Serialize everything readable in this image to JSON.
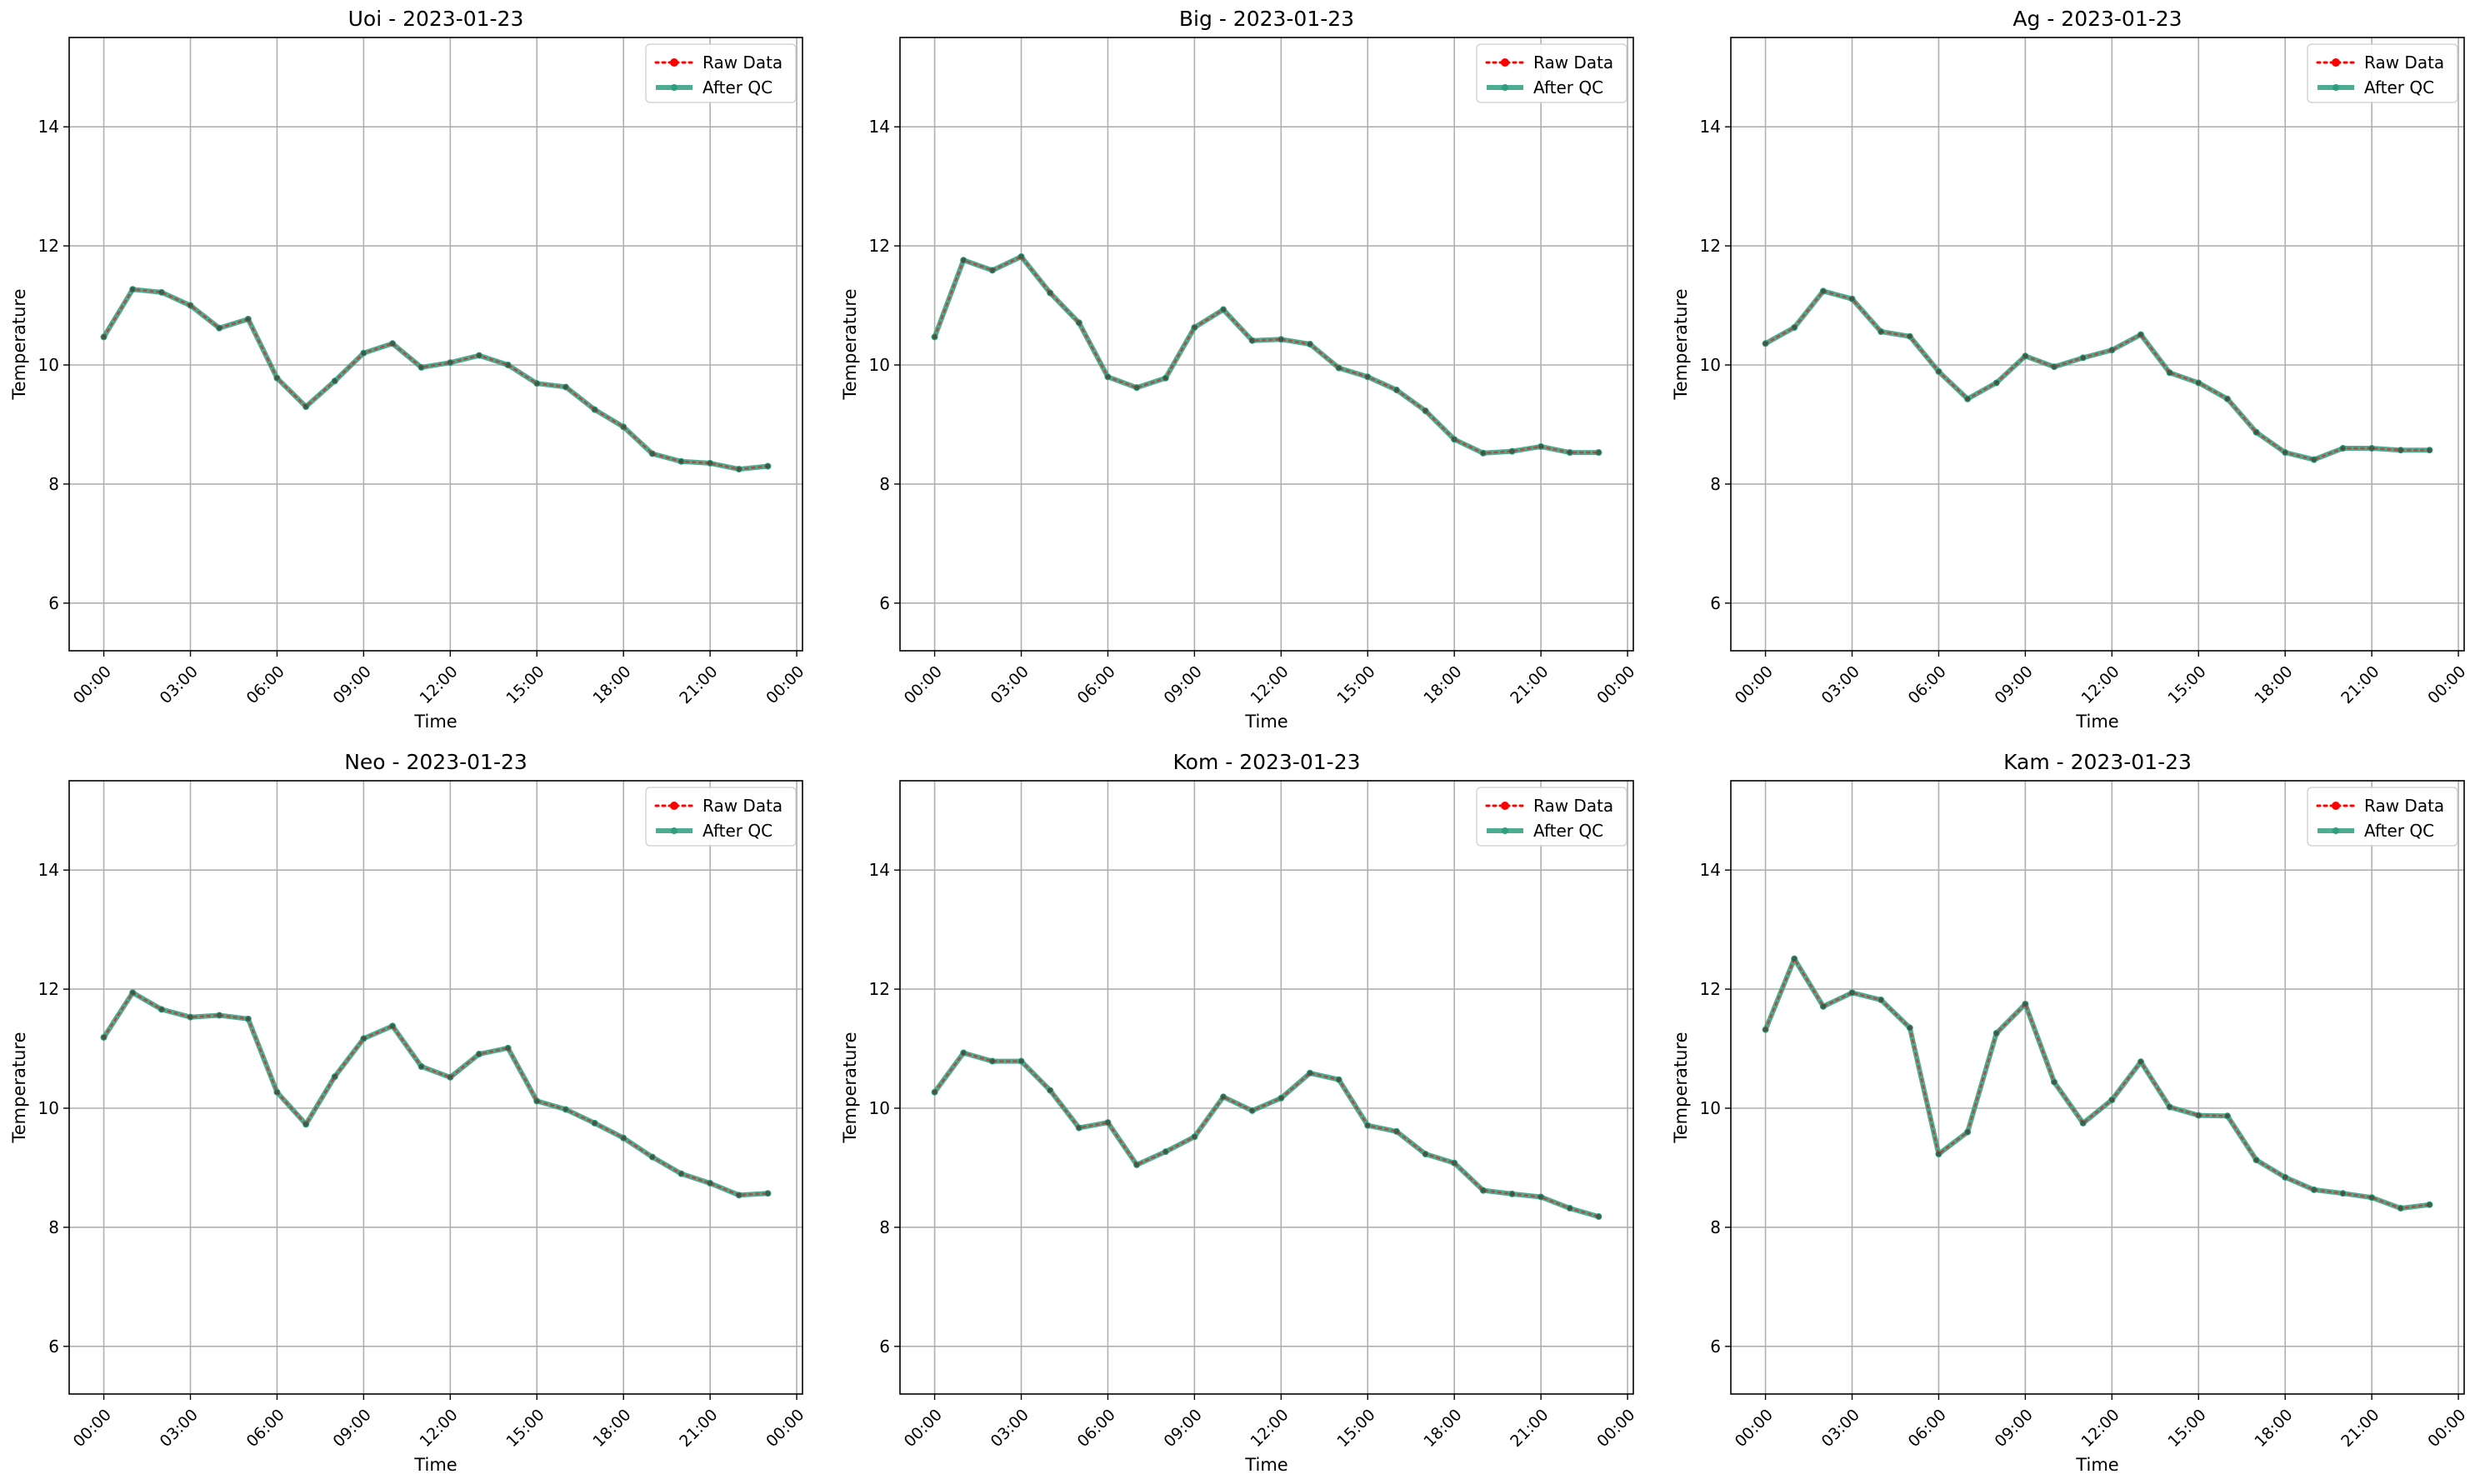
{
  "chart_data": [
    {
      "type": "line",
      "title": "Uoi - 2023-01-23",
      "xlabel": "Time",
      "ylabel": "Temperature",
      "x_ticks": [
        "00:00",
        "03:00",
        "06:00",
        "09:00",
        "12:00",
        "15:00",
        "18:00",
        "21:00",
        "00:00"
      ],
      "y_ticks": [
        "6",
        "8",
        "10",
        "12",
        "14"
      ],
      "ylim": [
        5.2,
        15.5
      ],
      "xlim_hours": [
        -1.2,
        24.2
      ],
      "grid": true,
      "legend_position": "top-right",
      "x_hours": [
        0,
        1,
        2,
        3,
        4,
        5,
        6,
        7,
        8,
        9,
        10,
        11,
        12,
        13,
        14,
        15,
        16,
        17,
        18,
        19,
        20,
        21,
        22,
        23
      ],
      "series": [
        {
          "name": "Raw Data",
          "color": "#ff0000",
          "style": "dotted",
          "values": [
            10.47,
            11.27,
            11.22,
            11.0,
            10.62,
            10.77,
            9.78,
            9.3,
            9.73,
            10.2,
            10.36,
            9.96,
            10.04,
            10.16,
            10.0,
            9.69,
            9.63,
            9.25,
            8.96,
            8.51,
            8.38,
            8.35,
            8.25,
            8.3
          ]
        },
        {
          "name": "After QC",
          "color": "#2e9e7e",
          "style": "solid",
          "values": [
            10.47,
            11.27,
            11.22,
            11.0,
            10.62,
            10.77,
            9.78,
            9.3,
            9.73,
            10.2,
            10.36,
            9.96,
            10.04,
            10.16,
            10.0,
            9.69,
            9.63,
            9.25,
            8.96,
            8.51,
            8.38,
            8.35,
            8.25,
            8.3
          ]
        }
      ]
    },
    {
      "type": "line",
      "title": "Big - 2023-01-23",
      "xlabel": "Time",
      "ylabel": "Temperature",
      "x_ticks": [
        "00:00",
        "03:00",
        "06:00",
        "09:00",
        "12:00",
        "15:00",
        "18:00",
        "21:00",
        "00:00"
      ],
      "y_ticks": [
        "6",
        "8",
        "10",
        "12",
        "14"
      ],
      "ylim": [
        5.2,
        15.5
      ],
      "xlim_hours": [
        -1.2,
        24.2
      ],
      "grid": true,
      "legend_position": "top-right",
      "x_hours": [
        0,
        1,
        2,
        3,
        4,
        5,
        6,
        7,
        8,
        9,
        10,
        11,
        12,
        13,
        14,
        15,
        16,
        17,
        18,
        19,
        20,
        21,
        22,
        23
      ],
      "series": [
        {
          "name": "Raw Data",
          "color": "#ff0000",
          "style": "dotted",
          "values": [
            10.47,
            11.76,
            11.59,
            11.82,
            11.21,
            10.71,
            9.8,
            9.62,
            9.78,
            10.63,
            10.93,
            10.41,
            10.43,
            10.35,
            9.95,
            9.8,
            9.58,
            9.23,
            8.75,
            8.52,
            8.55,
            8.63,
            8.53,
            8.53
          ]
        },
        {
          "name": "After QC",
          "color": "#2e9e7e",
          "style": "solid",
          "values": [
            10.47,
            11.76,
            11.59,
            11.82,
            11.21,
            10.71,
            9.8,
            9.62,
            9.78,
            10.63,
            10.93,
            10.41,
            10.43,
            10.35,
            9.95,
            9.8,
            9.58,
            9.23,
            8.75,
            8.52,
            8.55,
            8.63,
            8.53,
            8.53
          ]
        }
      ]
    },
    {
      "type": "line",
      "title": "Ag - 2023-01-23",
      "xlabel": "Time",
      "ylabel": "Temperature",
      "x_ticks": [
        "00:00",
        "03:00",
        "06:00",
        "09:00",
        "12:00",
        "15:00",
        "18:00",
        "21:00",
        "00:00"
      ],
      "y_ticks": [
        "6",
        "8",
        "10",
        "12",
        "14"
      ],
      "ylim": [
        5.2,
        15.5
      ],
      "xlim_hours": [
        -1.2,
        24.2
      ],
      "grid": true,
      "legend_position": "top-right",
      "x_hours": [
        0,
        1,
        2,
        3,
        4,
        5,
        6,
        7,
        8,
        9,
        10,
        11,
        12,
        13,
        14,
        15,
        16,
        17,
        18,
        19,
        20,
        21,
        22,
        23
      ],
      "series": [
        {
          "name": "Raw Data",
          "color": "#ff0000",
          "style": "dotted",
          "values": [
            10.36,
            10.63,
            11.24,
            11.11,
            10.56,
            10.48,
            9.89,
            9.43,
            9.7,
            10.15,
            9.97,
            10.12,
            10.25,
            10.51,
            9.87,
            9.7,
            9.43,
            8.87,
            8.53,
            8.41,
            8.6,
            8.6,
            8.57,
            8.57
          ]
        },
        {
          "name": "After QC",
          "color": "#2e9e7e",
          "style": "solid",
          "values": [
            10.36,
            10.63,
            11.24,
            11.11,
            10.56,
            10.48,
            9.89,
            9.43,
            9.7,
            10.15,
            9.97,
            10.12,
            10.25,
            10.51,
            9.87,
            9.7,
            9.43,
            8.87,
            8.53,
            8.41,
            8.6,
            8.6,
            8.57,
            8.57
          ]
        }
      ]
    },
    {
      "type": "line",
      "title": "Neo - 2023-01-23",
      "xlabel": "Time",
      "ylabel": "Temperature",
      "x_ticks": [
        "00:00",
        "03:00",
        "06:00",
        "09:00",
        "12:00",
        "15:00",
        "18:00",
        "21:00",
        "00:00"
      ],
      "y_ticks": [
        "6",
        "8",
        "10",
        "12",
        "14"
      ],
      "ylim": [
        5.2,
        15.5
      ],
      "xlim_hours": [
        -1.2,
        24.2
      ],
      "grid": true,
      "legend_position": "top-right",
      "x_hours": [
        0,
        1,
        2,
        3,
        4,
        5,
        6,
        7,
        8,
        9,
        10,
        11,
        12,
        13,
        14,
        15,
        16,
        17,
        18,
        19,
        20,
        21,
        22,
        23
      ],
      "series": [
        {
          "name": "Raw Data",
          "color": "#ff0000",
          "style": "dotted",
          "values": [
            11.19,
            11.94,
            11.66,
            11.53,
            11.56,
            11.5,
            10.27,
            9.73,
            10.53,
            11.17,
            11.38,
            10.7,
            10.52,
            10.91,
            11.01,
            10.12,
            9.98,
            9.75,
            9.5,
            9.18,
            8.9,
            8.74,
            8.54,
            8.57
          ]
        },
        {
          "name": "After QC",
          "color": "#2e9e7e",
          "style": "solid",
          "values": [
            11.19,
            11.94,
            11.66,
            11.53,
            11.56,
            11.5,
            10.27,
            9.73,
            10.53,
            11.17,
            11.38,
            10.7,
            10.52,
            10.91,
            11.01,
            10.12,
            9.98,
            9.75,
            9.5,
            9.18,
            8.9,
            8.74,
            8.54,
            8.57
          ]
        }
      ]
    },
    {
      "type": "line",
      "title": "Kom - 2023-01-23",
      "xlabel": "Time",
      "ylabel": "Temperature",
      "x_ticks": [
        "00:00",
        "03:00",
        "06:00",
        "09:00",
        "12:00",
        "15:00",
        "18:00",
        "21:00",
        "00:00"
      ],
      "y_ticks": [
        "6",
        "8",
        "10",
        "12",
        "14"
      ],
      "ylim": [
        5.2,
        15.5
      ],
      "xlim_hours": [
        -1.2,
        24.2
      ],
      "grid": true,
      "legend_position": "top-right",
      "x_hours": [
        0,
        1,
        2,
        3,
        4,
        5,
        6,
        7,
        8,
        9,
        10,
        11,
        12,
        13,
        14,
        15,
        16,
        17,
        18,
        19,
        20,
        21,
        22,
        23
      ],
      "series": [
        {
          "name": "Raw Data",
          "color": "#ff0000",
          "style": "dotted",
          "values": [
            10.27,
            10.93,
            10.79,
            10.79,
            10.3,
            9.67,
            9.76,
            9.05,
            9.27,
            9.52,
            10.19,
            9.96,
            10.17,
            10.59,
            10.48,
            9.71,
            9.61,
            9.23,
            9.08,
            8.62,
            8.56,
            8.51,
            8.32,
            8.18
          ]
        },
        {
          "name": "After QC",
          "color": "#2e9e7e",
          "style": "solid",
          "values": [
            10.27,
            10.93,
            10.79,
            10.79,
            10.3,
            9.67,
            9.76,
            9.05,
            9.27,
            9.52,
            10.19,
            9.96,
            10.17,
            10.59,
            10.48,
            9.71,
            9.61,
            9.23,
            9.08,
            8.62,
            8.56,
            8.51,
            8.32,
            8.18
          ]
        }
      ]
    },
    {
      "type": "line",
      "title": "Kam - 2023-01-23",
      "xlabel": "Time",
      "ylabel": "Temperature",
      "x_ticks": [
        "00:00",
        "03:00",
        "06:00",
        "09:00",
        "12:00",
        "15:00",
        "18:00",
        "21:00",
        "00:00"
      ],
      "y_ticks": [
        "6",
        "8",
        "10",
        "12",
        "14"
      ],
      "ylim": [
        5.2,
        15.5
      ],
      "xlim_hours": [
        -1.2,
        24.2
      ],
      "grid": true,
      "legend_position": "top-right",
      "x_hours": [
        0,
        1,
        2,
        3,
        4,
        5,
        6,
        7,
        8,
        9,
        10,
        11,
        12,
        13,
        14,
        15,
        16,
        17,
        18,
        19,
        20,
        21,
        22,
        23
      ],
      "series": [
        {
          "name": "Raw Data",
          "color": "#ff0000",
          "style": "dotted",
          "values": [
            11.32,
            12.51,
            11.71,
            11.94,
            11.82,
            11.35,
            9.23,
            9.6,
            11.26,
            11.75,
            10.44,
            9.75,
            10.14,
            10.78,
            10.02,
            9.88,
            9.87,
            9.13,
            8.84,
            8.63,
            8.57,
            8.5,
            8.32,
            8.38
          ]
        },
        {
          "name": "After QC",
          "color": "#2e9e7e",
          "style": "solid",
          "values": [
            11.32,
            12.51,
            11.71,
            11.94,
            11.82,
            11.35,
            9.23,
            9.6,
            11.26,
            11.75,
            10.44,
            9.75,
            10.14,
            10.78,
            10.02,
            9.88,
            9.87,
            9.13,
            8.84,
            8.63,
            8.57,
            8.5,
            8.32,
            8.38
          ]
        }
      ]
    }
  ]
}
